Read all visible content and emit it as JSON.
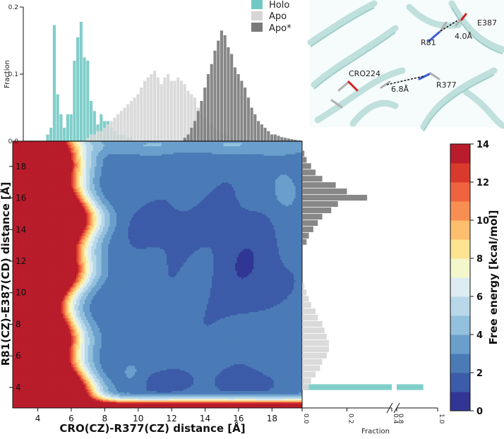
{
  "chart_data": [
    {
      "type": "heatmap",
      "panel": "main",
      "title": "",
      "xlabel": "CRO(CZ)-R377(CZ) distance [Å]",
      "ylabel": "R81(CZ)-E387(CD) distance [Å]",
      "xlim": [
        2.5,
        19.8
      ],
      "ylim": [
        2.7,
        19.6
      ],
      "xticks": [
        "4",
        "6",
        "8",
        "10",
        "12",
        "14",
        "16",
        "18"
      ],
      "yticks": [
        "4",
        "6",
        "8",
        "10",
        "12",
        "14",
        "16",
        "18"
      ],
      "colorbar": {
        "label": "Free energy [kcal/mol]",
        "range": [
          0,
          14
        ],
        "ticks": [
          "0",
          "2",
          "4",
          "6",
          "8",
          "10",
          "12",
          "14"
        ],
        "colors": [
          "#313695",
          "#3c5ba8",
          "#4a7bb7",
          "#6a9fcc",
          "#92c0dd",
          "#b8d8e9",
          "#dcecf1",
          "#f4f6cb",
          "#fee391",
          "#fdbe6e",
          "#f98e52",
          "#ef633e",
          "#d93a2d",
          "#b91c2b"
        ]
      }
    },
    {
      "type": "bar",
      "panel": "top-marginal",
      "ylabel": "Fraction",
      "yticks": [
        "0.0",
        "0.1",
        "0.2"
      ],
      "ylim": [
        0,
        0.2
      ],
      "x": [
        4.2,
        4.4,
        4.6,
        4.8,
        5.0,
        5.2,
        5.4,
        5.6,
        5.8,
        6.0,
        6.2,
        6.4,
        6.6,
        6.8,
        7.0,
        7.2,
        7.4,
        7.6,
        7.8,
        8.0,
        8.2,
        8.4,
        8.6,
        8.8,
        9.0,
        9.2,
        9.4,
        9.6,
        9.8,
        10.0,
        10.2,
        10.4,
        10.6,
        10.8,
        11.0,
        11.2,
        11.4,
        11.6,
        11.8,
        12.0,
        12.2,
        12.4,
        12.6,
        12.8,
        13.0,
        13.2,
        13.4,
        13.6,
        13.8,
        14.0,
        14.2,
        14.4,
        14.6,
        14.8,
        15.0,
        15.2,
        15.4,
        15.6,
        15.8,
        16.0,
        16.2,
        16.4,
        16.6,
        16.8,
        17.0,
        17.2,
        17.4,
        17.6,
        17.8,
        18.0,
        18.2,
        18.4,
        18.6,
        18.8,
        19.0,
        19.2,
        19.4,
        19.6
      ],
      "series": [
        {
          "name": "Holo",
          "color": "#72c9c4",
          "values": [
            0.0,
            0.0,
            0.01,
            0.02,
            0.173,
            0.07,
            0.04,
            0.02,
            0.04,
            0.04,
            0.12,
            0.155,
            0.178,
            0.125,
            0.12,
            0.06,
            0.045,
            0.025,
            0.04,
            0.03,
            0.03,
            0.02,
            0.015,
            0.01,
            0.01,
            0.01,
            0.005,
            0.005,
            0.0,
            0.0,
            0.0,
            0.0,
            0.0,
            0.0,
            0.0,
            0.0,
            0.0,
            0.0,
            0.0,
            0.0,
            0.0,
            0.0,
            0.0,
            0.0,
            0.0,
            0.0,
            0.0,
            0.0,
            0.0,
            0.0,
            0.0,
            0.0,
            0.0,
            0.0,
            0.0,
            0.0,
            0.0,
            0.0,
            0.0,
            0.0,
            0.0,
            0.0,
            0.0,
            0.0,
            0.0,
            0.0,
            0.0,
            0.0,
            0.0,
            0.0,
            0.0,
            0.0,
            0.0,
            0.0,
            0.0,
            0.0,
            0.0,
            0.0
          ]
        },
        {
          "name": "Apo",
          "color": "#d6d6d6",
          "values": [
            0.0,
            0.0,
            0.0,
            0.0,
            0.0,
            0.0,
            0.0,
            0.0,
            0.0,
            0.0,
            0.0,
            0.0,
            0.0,
            0.0,
            0.005,
            0.01,
            0.01,
            0.015,
            0.015,
            0.02,
            0.025,
            0.03,
            0.035,
            0.04,
            0.045,
            0.05,
            0.055,
            0.06,
            0.065,
            0.07,
            0.08,
            0.09,
            0.095,
            0.1,
            0.105,
            0.095,
            0.085,
            0.095,
            0.1,
            0.09,
            0.09,
            0.095,
            0.09,
            0.085,
            0.075,
            0.07,
            0.065,
            0.05,
            0.04,
            0.035,
            0.03,
            0.025,
            0.02,
            0.015,
            0.01,
            0.01,
            0.008,
            0.005,
            0.004,
            0.003,
            0.002,
            0.002,
            0.001,
            0.001,
            0.0,
            0.0,
            0.0,
            0.0,
            0.0,
            0.0,
            0.0,
            0.0,
            0.0,
            0.0,
            0.0,
            0.0,
            0.0,
            0.0
          ]
        },
        {
          "name": "Apo*",
          "color": "#7a7a7a",
          "values": [
            0.0,
            0.0,
            0.0,
            0.0,
            0.0,
            0.0,
            0.0,
            0.0,
            0.0,
            0.0,
            0.0,
            0.0,
            0.0,
            0.0,
            0.0,
            0.0,
            0.0,
            0.0,
            0.0,
            0.0,
            0.0,
            0.0,
            0.0,
            0.0,
            0.0,
            0.0,
            0.0,
            0.0,
            0.0,
            0.0,
            0.0,
            0.0,
            0.0,
            0.0,
            0.0,
            0.0,
            0.0,
            0.0,
            0.0,
            0.0,
            0.0,
            0.0,
            0.0,
            0.005,
            0.01,
            0.02,
            0.03,
            0.045,
            0.06,
            0.08,
            0.1,
            0.115,
            0.135,
            0.15,
            0.165,
            0.158,
            0.14,
            0.13,
            0.11,
            0.1,
            0.09,
            0.08,
            0.065,
            0.05,
            0.04,
            0.03,
            0.025,
            0.02,
            0.015,
            0.01,
            0.01,
            0.008,
            0.006,
            0.005,
            0.004,
            0.003,
            0.002,
            0.001
          ]
        }
      ]
    },
    {
      "type": "bar",
      "panel": "right-marginal",
      "orientation": "horizontal",
      "xlabel": "Fraction",
      "xticks": [
        "0.0",
        "0.2",
        "0.4",
        "0.8",
        "1.0"
      ],
      "xlim": [
        0,
        1.0
      ],
      "axis_break": [
        0.4,
        0.8
      ],
      "y": [
        4.0,
        4.4,
        4.8,
        5.2,
        5.6,
        6.0,
        6.4,
        6.8,
        7.2,
        7.6,
        8.0,
        8.4,
        8.8,
        9.2,
        9.6,
        10.0,
        10.4,
        13.2,
        13.6,
        14.0,
        14.4,
        14.8,
        15.2,
        15.6,
        16.0,
        16.4,
        16.8,
        17.2,
        17.6,
        18.0,
        18.4,
        18.8
      ],
      "series": [
        {
          "name": "Holo",
          "color": "#72c9c4",
          "values": [
            0.93,
            0.01,
            0.0,
            0.0,
            0.0,
            0.0,
            0.0,
            0.0,
            0.0,
            0.0,
            0.0,
            0.0,
            0.0,
            0.0,
            0.0,
            0.0,
            0.0,
            0.0,
            0.0,
            0.0,
            0.0,
            0.0,
            0.0,
            0.0,
            0.0,
            0.0,
            0.0,
            0.0,
            0.0,
            0.0,
            0.0,
            0.0
          ]
        },
        {
          "name": "Apo",
          "color": "#d6d6d6",
          "values": [
            0.03,
            0.04,
            0.06,
            0.08,
            0.09,
            0.11,
            0.12,
            0.12,
            0.11,
            0.1,
            0.09,
            0.07,
            0.06,
            0.04,
            0.03,
            0.02,
            0.01,
            0.0,
            0.0,
            0.0,
            0.0,
            0.0,
            0.0,
            0.0,
            0.0,
            0.0,
            0.0,
            0.0,
            0.0,
            0.0,
            0.0,
            0.0
          ]
        },
        {
          "name": "Apo*",
          "color": "#7a7a7a",
          "values": [
            0.0,
            0.0,
            0.0,
            0.0,
            0.0,
            0.0,
            0.0,
            0.0,
            0.0,
            0.0,
            0.0,
            0.0,
            0.0,
            0.0,
            0.0,
            0.0,
            0.0,
            0.02,
            0.03,
            0.05,
            0.07,
            0.09,
            0.13,
            0.16,
            0.29,
            0.2,
            0.15,
            0.09,
            0.06,
            0.04,
            0.02,
            0.01
          ]
        }
      ]
    }
  ],
  "legend": {
    "entries": [
      {
        "label": "Holo",
        "color": "#72c9c4"
      },
      {
        "label": "Apo",
        "color": "#d6d6d6"
      },
      {
        "label": "Apo*",
        "color": "#7a7a7a"
      }
    ]
  },
  "inset": {
    "labels": {
      "e387": "E387",
      "r81": "R81",
      "d1": "4.0Å",
      "cro": "CRO224",
      "d2": "6.8Å",
      "r377": "R377"
    }
  }
}
